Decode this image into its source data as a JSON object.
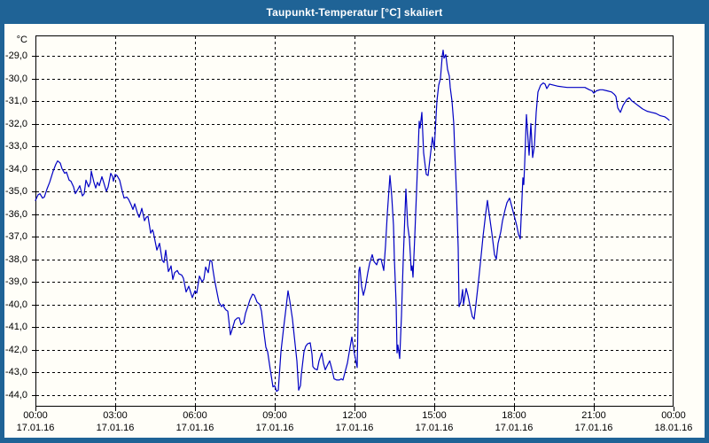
{
  "window": {
    "title": "Taupunkt-Temperatur [°C] skaliert"
  },
  "colors": {
    "title_bar_bg": "#1F6396",
    "title_text": "#FFFFFF",
    "window_border": "#1F6396",
    "content_bg": "#FFFEF8",
    "grid_color": "#000000",
    "series_color": "#0000C4"
  },
  "chart_data": {
    "type": "line",
    "title": "Taupunkt-Temperatur [°C] skaliert",
    "ylabel": "°C",
    "xlabel": "",
    "grid": "dashed black, 1 °C horizontal steps, 3 h vertical steps",
    "legend_position": "none",
    "axes": {
      "y_tick_labels": [
        "-29,0",
        "-30,0",
        "-31,0",
        "-32,0",
        "-33,0",
        "-34,0",
        "-35,0",
        "-36,0",
        "-37,0",
        "-38,0",
        "-39,0",
        "-40,0",
        "-41,0",
        "-42,0",
        "-43,0",
        "-44,0"
      ],
      "y_tick_values": [
        -29,
        -30,
        -31,
        -32,
        -33,
        -34,
        -35,
        -36,
        -37,
        -38,
        -39,
        -40,
        -41,
        -42,
        -43,
        -44
      ],
      "y_range_shown": [
        -44.5,
        -28.1
      ],
      "x_total_minutes": 1440,
      "x_ticks": [
        {
          "minutes": 0,
          "time": "00:00",
          "date": "17.01.16"
        },
        {
          "minutes": 180,
          "time": "03:00",
          "date": "17.01.16"
        },
        {
          "minutes": 360,
          "time": "06:00",
          "date": "17.01.16"
        },
        {
          "minutes": 540,
          "time": "09:00",
          "date": "17.01.16"
        },
        {
          "minutes": 720,
          "time": "12:00",
          "date": "17.01.16"
        },
        {
          "minutes": 900,
          "time": "15:00",
          "date": "17.01.16"
        },
        {
          "minutes": 1080,
          "time": "18:00",
          "date": "17.01.16"
        },
        {
          "minutes": 1260,
          "time": "21:00",
          "date": "17.01.16"
        },
        {
          "minutes": 1440,
          "time": "00:00",
          "date": "18.01.16"
        }
      ]
    },
    "series": [
      {
        "name": "Taupunkt-Temperatur",
        "color": "#0000C4",
        "points": [
          [
            0,
            -35.4
          ],
          [
            6,
            -35.15
          ],
          [
            10,
            -35.1
          ],
          [
            16,
            -35.3
          ],
          [
            20,
            -35.25
          ],
          [
            26,
            -34.9
          ],
          [
            32,
            -34.6
          ],
          [
            40,
            -34.1
          ],
          [
            46,
            -33.8
          ],
          [
            50,
            -33.65
          ],
          [
            56,
            -33.75
          ],
          [
            60,
            -34.0
          ],
          [
            66,
            -34.2
          ],
          [
            70,
            -34.15
          ],
          [
            76,
            -34.5
          ],
          [
            80,
            -34.55
          ],
          [
            86,
            -34.8
          ],
          [
            90,
            -35.1
          ],
          [
            96,
            -34.9
          ],
          [
            100,
            -34.75
          ],
          [
            106,
            -35.2
          ],
          [
            110,
            -35.1
          ],
          [
            114,
            -34.5
          ],
          [
            120,
            -34.8
          ],
          [
            124,
            -34.6
          ],
          [
            126,
            -34.1
          ],
          [
            132,
            -34.6
          ],
          [
            136,
            -34.85
          ],
          [
            140,
            -34.6
          ],
          [
            144,
            -34.75
          ],
          [
            150,
            -34.35
          ],
          [
            154,
            -34.6
          ],
          [
            160,
            -35.0
          ],
          [
            164,
            -34.8
          ],
          [
            170,
            -34.2
          ],
          [
            174,
            -34.35
          ],
          [
            176,
            -34.55
          ],
          [
            180,
            -34.25
          ],
          [
            184,
            -34.3
          ],
          [
            190,
            -34.5
          ],
          [
            196,
            -35.0
          ],
          [
            200,
            -35.3
          ],
          [
            206,
            -35.25
          ],
          [
            210,
            -35.35
          ],
          [
            216,
            -35.6
          ],
          [
            220,
            -35.8
          ],
          [
            224,
            -35.55
          ],
          [
            230,
            -35.95
          ],
          [
            234,
            -36.15
          ],
          [
            238,
            -35.9
          ],
          [
            240,
            -35.75
          ],
          [
            244,
            -36.1
          ],
          [
            246,
            -36.3
          ],
          [
            250,
            -36.15
          ],
          [
            254,
            -36.1
          ],
          [
            260,
            -36.85
          ],
          [
            264,
            -36.7
          ],
          [
            266,
            -36.8
          ],
          [
            270,
            -37.2
          ],
          [
            274,
            -37.6
          ],
          [
            280,
            -37.3
          ],
          [
            286,
            -38.05
          ],
          [
            290,
            -38.15
          ],
          [
            294,
            -37.6
          ],
          [
            300,
            -38.55
          ],
          [
            304,
            -38.4
          ],
          [
            306,
            -38.3
          ],
          [
            310,
            -38.9
          ],
          [
            314,
            -38.6
          ],
          [
            320,
            -38.5
          ],
          [
            324,
            -38.65
          ],
          [
            330,
            -38.7
          ],
          [
            334,
            -38.85
          ],
          [
            340,
            -39.45
          ],
          [
            346,
            -39.2
          ],
          [
            350,
            -39.45
          ],
          [
            354,
            -39.7
          ],
          [
            360,
            -39.4
          ],
          [
            364,
            -39.5
          ],
          [
            370,
            -38.75
          ],
          [
            376,
            -39.0
          ],
          [
            380,
            -38.9
          ],
          [
            384,
            -38.35
          ],
          [
            390,
            -38.6
          ],
          [
            394,
            -38.05
          ],
          [
            398,
            -38.1
          ],
          [
            400,
            -38.4
          ],
          [
            404,
            -38.9
          ],
          [
            410,
            -39.5
          ],
          [
            414,
            -39.9
          ],
          [
            420,
            -40.1
          ],
          [
            424,
            -40.0
          ],
          [
            426,
            -40.15
          ],
          [
            430,
            -40.25
          ],
          [
            434,
            -40.3
          ],
          [
            440,
            -41.35
          ],
          [
            444,
            -41.1
          ],
          [
            450,
            -40.7
          ],
          [
            456,
            -40.6
          ],
          [
            460,
            -40.6
          ],
          [
            464,
            -40.9
          ],
          [
            470,
            -40.8
          ],
          [
            474,
            -40.4
          ],
          [
            480,
            -40.05
          ],
          [
            484,
            -39.8
          ],
          [
            490,
            -39.55
          ],
          [
            494,
            -39.6
          ],
          [
            500,
            -39.9
          ],
          [
            506,
            -40.0
          ],
          [
            510,
            -40.3
          ],
          [
            516,
            -41.3
          ],
          [
            520,
            -41.9
          ],
          [
            524,
            -42.1
          ],
          [
            530,
            -42.9
          ],
          [
            536,
            -43.65
          ],
          [
            540,
            -43.6
          ],
          [
            544,
            -43.85
          ],
          [
            548,
            -43.8
          ],
          [
            554,
            -42.1
          ],
          [
            560,
            -41.05
          ],
          [
            564,
            -40.4
          ],
          [
            570,
            -39.4
          ],
          [
            574,
            -39.85
          ],
          [
            580,
            -40.65
          ],
          [
            584,
            -41.4
          ],
          [
            590,
            -42.5
          ],
          [
            594,
            -43.8
          ],
          [
            598,
            -43.6
          ],
          [
            600,
            -43.1
          ],
          [
            606,
            -42.1
          ],
          [
            610,
            -41.85
          ],
          [
            614,
            -41.75
          ],
          [
            620,
            -41.7
          ],
          [
            624,
            -42.2
          ],
          [
            626,
            -42.75
          ],
          [
            630,
            -42.85
          ],
          [
            636,
            -42.9
          ],
          [
            640,
            -42.5
          ],
          [
            646,
            -42.15
          ],
          [
            650,
            -42.6
          ],
          [
            654,
            -42.9
          ],
          [
            660,
            -42.65
          ],
          [
            664,
            -42.5
          ],
          [
            670,
            -42.95
          ],
          [
            674,
            -43.3
          ],
          [
            680,
            -43.35
          ],
          [
            686,
            -43.35
          ],
          [
            690,
            -43.3
          ],
          [
            694,
            -43.35
          ],
          [
            700,
            -42.9
          ],
          [
            704,
            -42.6
          ],
          [
            710,
            -41.9
          ],
          [
            714,
            -41.45
          ],
          [
            720,
            -42.2
          ],
          [
            724,
            -42.6
          ],
          [
            726,
            -42.8
          ],
          [
            730,
            -38.5
          ],
          [
            732,
            -38.35
          ],
          [
            736,
            -39.2
          ],
          [
            740,
            -39.6
          ],
          [
            744,
            -39.3
          ],
          [
            750,
            -38.6
          ],
          [
            754,
            -38.2
          ],
          [
            760,
            -37.8
          ],
          [
            764,
            -38.1
          ],
          [
            770,
            -38.25
          ],
          [
            774,
            -38.0
          ],
          [
            780,
            -38.0
          ],
          [
            786,
            -38.5
          ],
          [
            790,
            -37.4
          ],
          [
            794,
            -36.0
          ],
          [
            800,
            -34.3
          ],
          [
            804,
            -35.2
          ],
          [
            808,
            -36.5
          ],
          [
            810,
            -38.0
          ],
          [
            814,
            -40.0
          ],
          [
            816,
            -42.15
          ],
          [
            818,
            -41.8
          ],
          [
            822,
            -42.4
          ],
          [
            826,
            -40.5
          ],
          [
            830,
            -38.0
          ],
          [
            836,
            -34.9
          ],
          [
            840,
            -36.5
          ],
          [
            844,
            -37.1
          ],
          [
            848,
            -38.5
          ],
          [
            850,
            -38.3
          ],
          [
            852,
            -38.8
          ],
          [
            856,
            -37.0
          ],
          [
            860,
            -35.0
          ],
          [
            864,
            -33.0
          ],
          [
            866,
            -31.9
          ],
          [
            868,
            -32.2
          ],
          [
            872,
            -31.5
          ],
          [
            876,
            -33.3
          ],
          [
            882,
            -34.25
          ],
          [
            886,
            -34.3
          ],
          [
            890,
            -33.6
          ],
          [
            896,
            -32.6
          ],
          [
            900,
            -33.1
          ],
          [
            906,
            -31.0
          ],
          [
            910,
            -30.3
          ],
          [
            914,
            -30.0
          ],
          [
            918,
            -29.0
          ],
          [
            920,
            -28.75
          ],
          [
            922,
            -29.1
          ],
          [
            926,
            -28.95
          ],
          [
            930,
            -29.6
          ],
          [
            934,
            -29.9
          ],
          [
            936,
            -30.4
          ],
          [
            940,
            -31.0
          ],
          [
            944,
            -32.0
          ],
          [
            946,
            -33.1
          ],
          [
            950,
            -35.0
          ],
          [
            954,
            -37.5
          ],
          [
            956,
            -40.1
          ],
          [
            960,
            -39.9
          ],
          [
            964,
            -39.35
          ],
          [
            966,
            -40.0
          ],
          [
            972,
            -39.3
          ],
          [
            976,
            -39.6
          ],
          [
            980,
            -40.0
          ],
          [
            986,
            -40.55
          ],
          [
            990,
            -40.65
          ],
          [
            994,
            -40.0
          ],
          [
            1000,
            -38.95
          ],
          [
            1006,
            -37.8
          ],
          [
            1010,
            -37.0
          ],
          [
            1016,
            -36.0
          ],
          [
            1020,
            -35.4
          ],
          [
            1024,
            -36.0
          ],
          [
            1030,
            -36.85
          ],
          [
            1036,
            -37.8
          ],
          [
            1040,
            -38.0
          ],
          [
            1044,
            -37.3
          ],
          [
            1050,
            -36.8
          ],
          [
            1054,
            -36.3
          ],
          [
            1060,
            -35.8
          ],
          [
            1064,
            -35.5
          ],
          [
            1070,
            -35.3
          ],
          [
            1074,
            -35.6
          ],
          [
            1080,
            -36.05
          ],
          [
            1086,
            -36.5
          ],
          [
            1090,
            -36.9
          ],
          [
            1094,
            -37.1
          ],
          [
            1100,
            -34.4
          ],
          [
            1102,
            -34.7
          ],
          [
            1104,
            -33.8
          ],
          [
            1108,
            -31.6
          ],
          [
            1114,
            -33.4
          ],
          [
            1118,
            -32.0
          ],
          [
            1122,
            -33.5
          ],
          [
            1126,
            -33.0
          ],
          [
            1130,
            -31.5
          ],
          [
            1134,
            -30.6
          ],
          [
            1140,
            -30.3
          ],
          [
            1146,
            -30.2
          ],
          [
            1150,
            -30.25
          ],
          [
            1154,
            -30.45
          ],
          [
            1160,
            -30.25
          ],
          [
            1170,
            -30.3
          ],
          [
            1180,
            -30.35
          ],
          [
            1200,
            -30.4
          ],
          [
            1220,
            -30.4
          ],
          [
            1240,
            -30.4
          ],
          [
            1250,
            -30.5
          ],
          [
            1256,
            -30.55
          ],
          [
            1260,
            -30.65
          ],
          [
            1266,
            -30.55
          ],
          [
            1274,
            -30.5
          ],
          [
            1280,
            -30.5
          ],
          [
            1290,
            -30.55
          ],
          [
            1300,
            -30.6
          ],
          [
            1306,
            -30.7
          ],
          [
            1310,
            -30.8
          ],
          [
            1314,
            -31.3
          ],
          [
            1320,
            -31.5
          ],
          [
            1326,
            -31.2
          ],
          [
            1334,
            -30.95
          ],
          [
            1340,
            -30.85
          ],
          [
            1346,
            -31.0
          ],
          [
            1350,
            -31.05
          ],
          [
            1360,
            -31.2
          ],
          [
            1370,
            -31.35
          ],
          [
            1380,
            -31.45
          ],
          [
            1390,
            -31.5
          ],
          [
            1400,
            -31.55
          ],
          [
            1410,
            -31.65
          ],
          [
            1420,
            -31.7
          ],
          [
            1426,
            -31.78
          ],
          [
            1430,
            -31.85
          ]
        ]
      }
    ]
  }
}
